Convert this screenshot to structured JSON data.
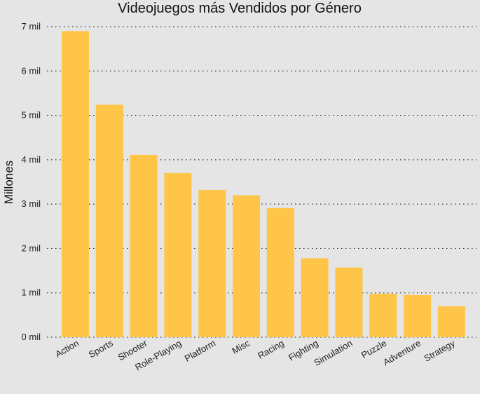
{
  "chart_data": {
    "type": "bar",
    "title": "Videojuegos más Vendidos por Género",
    "xlabel": "",
    "ylabel": "Millones",
    "categories": [
      "Action",
      "Sports",
      "Shooter",
      "Role-Playing",
      "Platform",
      "Misc",
      "Racing",
      "Fighting",
      "Simulation",
      "Puzzle",
      "Adventure",
      "Strategy"
    ],
    "values": [
      6.9,
      5.24,
      4.11,
      3.7,
      3.32,
      3.2,
      2.91,
      1.78,
      1.57,
      0.98,
      0.95,
      0.7
    ],
    "ylim": [
      0,
      7
    ],
    "yticks": [
      0,
      1,
      2,
      3,
      4,
      5,
      6,
      7
    ],
    "ytick_labels": [
      "0 mil",
      "1 mil",
      "2 mil",
      "3 mil",
      "4 mil",
      "5 mil",
      "6 mil",
      "7 mil"
    ],
    "grid": "horizontal dotted",
    "bar_color": "#fec548",
    "background_color": "#e5e5e5"
  }
}
